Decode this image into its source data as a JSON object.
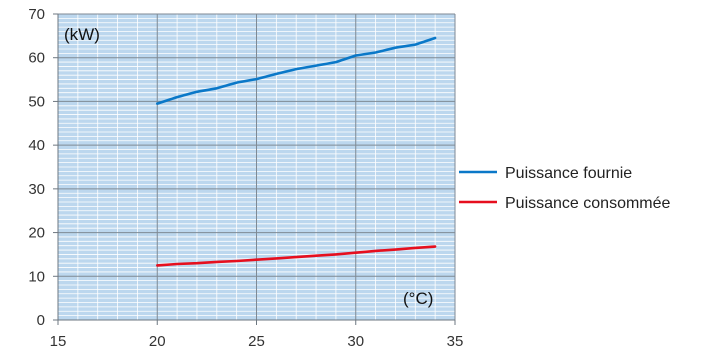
{
  "chart_data": {
    "type": "line",
    "title": "",
    "xlabel": "(°C)",
    "ylabel": "(kW)",
    "xlim": [
      15,
      35
    ],
    "ylim": [
      0,
      70
    ],
    "x_ticks": [
      15,
      20,
      25,
      30,
      35
    ],
    "y_ticks": [
      0,
      10,
      20,
      30,
      40,
      50,
      60,
      70
    ],
    "grid": true,
    "legend_position": "right",
    "colors": {
      "plot_background": "#bcd7ee",
      "minor_grid": "#ffffff",
      "major_grid": "#7f8a94"
    },
    "series": [
      {
        "name": "Puissance fournie",
        "color": "#0a78c8",
        "x": [
          20,
          21,
          22,
          23,
          24,
          25,
          26,
          27,
          28,
          29,
          30,
          31,
          32,
          33,
          34
        ],
        "values": [
          49.5,
          51.0,
          52.2,
          53.0,
          54.3,
          55.1,
          56.3,
          57.4,
          58.2,
          59.0,
          60.5,
          61.2,
          62.3,
          63.0,
          64.5
        ]
      },
      {
        "name": "Puissance consommée",
        "color": "#e60f1e",
        "x": [
          20,
          21,
          22,
          23,
          24,
          25,
          26,
          27,
          28,
          29,
          30,
          31,
          32,
          33,
          34
        ],
        "values": [
          12.5,
          12.8,
          13.0,
          13.3,
          13.5,
          13.8,
          14.1,
          14.4,
          14.7,
          15.0,
          15.4,
          15.8,
          16.1,
          16.5,
          16.8
        ]
      }
    ]
  }
}
